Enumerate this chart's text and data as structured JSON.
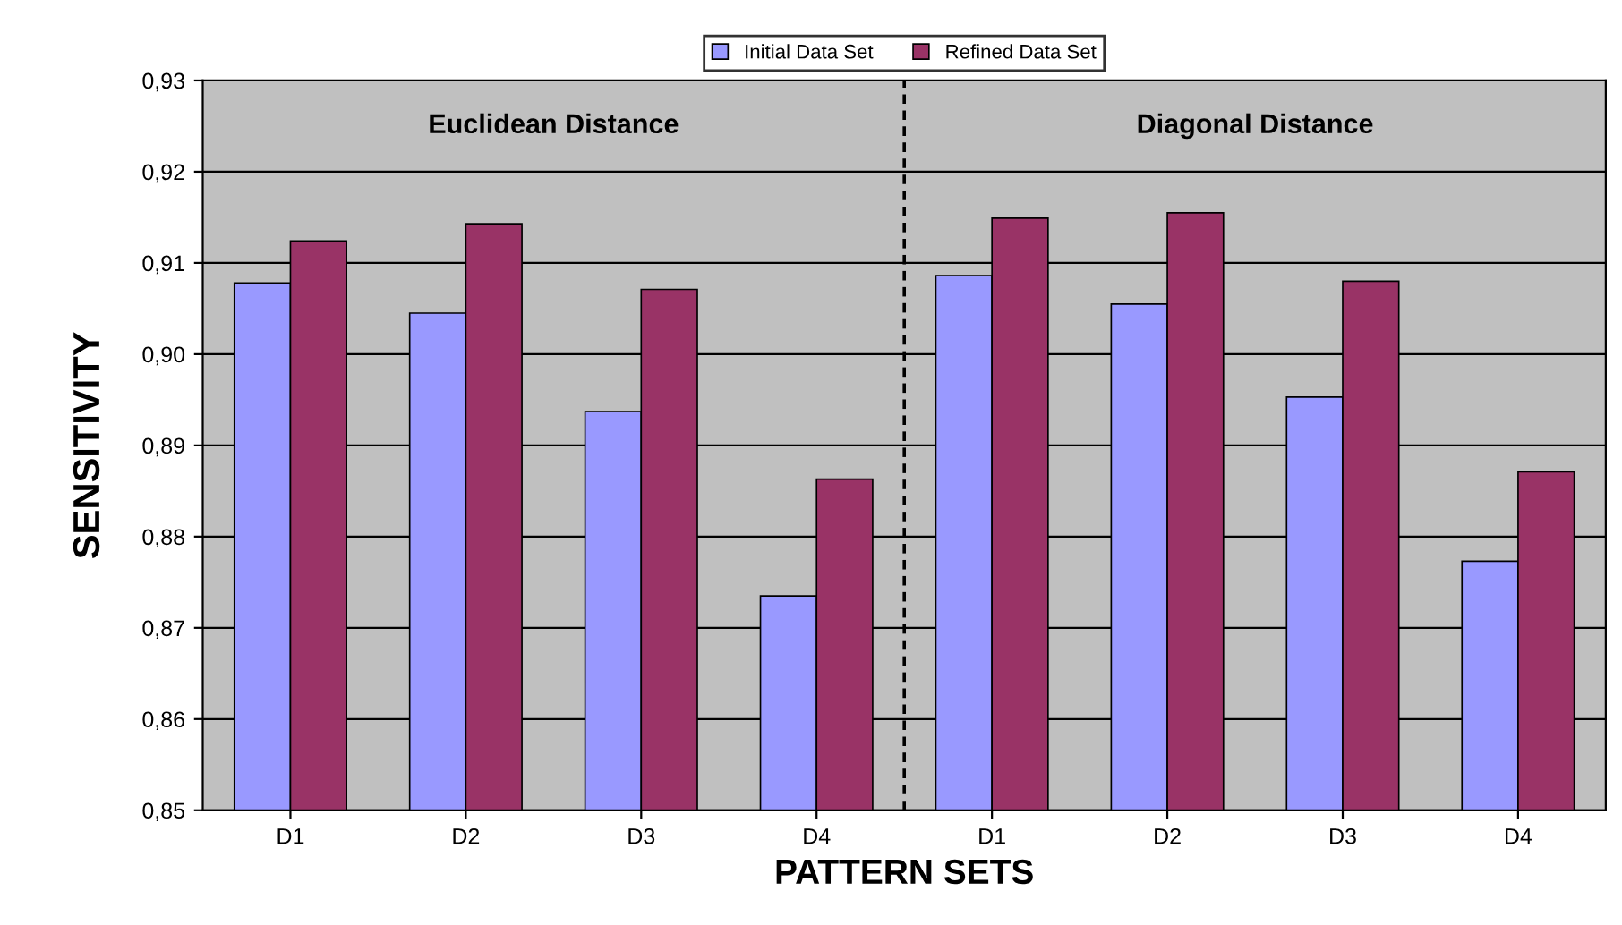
{
  "chart_data": {
    "type": "bar",
    "xlabel": "PATTERN SETS",
    "ylabel": "SENSITIVITY",
    "categories": [
      "D1",
      "D2",
      "D3",
      "D4",
      "D1",
      "D2",
      "D3",
      "D4"
    ],
    "series": [
      {
        "name": "Initial Data Set",
        "color": "#9999ff",
        "values": [
          0.9078,
          0.9045,
          0.8937,
          0.8735,
          0.9086,
          0.9055,
          0.8953,
          0.8773
        ]
      },
      {
        "name": "Refined Data Set",
        "color": "#993366",
        "values": [
          0.9124,
          0.9143,
          0.9071,
          0.8863,
          0.9149,
          0.9155,
          0.908,
          0.8871
        ]
      }
    ],
    "annotations": [
      "Euclidean Distance",
      "Diagonal Distance"
    ],
    "ylim": [
      0.85,
      0.93
    ],
    "yticks": [
      {
        "value": 0.85,
        "label": "0,85"
      },
      {
        "value": 0.86,
        "label": "0,86"
      },
      {
        "value": 0.87,
        "label": "0,87"
      },
      {
        "value": 0.88,
        "label": "0,88"
      },
      {
        "value": 0.89,
        "label": "0,89"
      },
      {
        "value": 0.9,
        "label": "0,90"
      },
      {
        "value": 0.91,
        "label": "0,91"
      },
      {
        "value": 0.92,
        "label": "0,92"
      },
      {
        "value": 0.93,
        "label": "0,93"
      }
    ],
    "grid": "y",
    "legend": "top"
  }
}
